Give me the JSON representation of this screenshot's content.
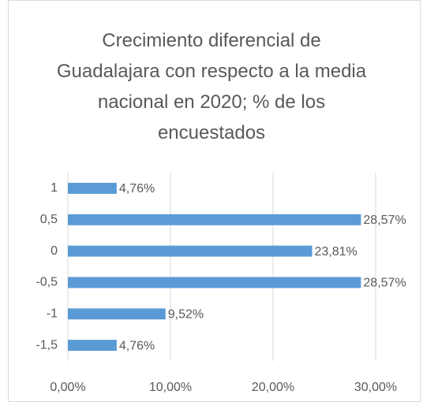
{
  "chart_data": {
    "type": "hbar",
    "title": "Crecimiento diferencial de Guadalajara con respecto a la media nacional en 2020; % de los encuestados",
    "categories": [
      "1",
      "0,5",
      "0",
      "-0,5",
      "-1",
      "-1,5"
    ],
    "values": [
      4.76,
      28.57,
      23.81,
      28.57,
      9.52,
      4.76
    ],
    "value_labels": [
      "4,76%",
      "28,57%",
      "23,81%",
      "28,57%",
      "9,52%",
      "4,76%"
    ],
    "color": "#5b9bd5",
    "xlim": [
      0,
      30
    ],
    "xticks": [
      {
        "value": 0,
        "label": "0,00%"
      },
      {
        "value": 10,
        "label": "10,00%"
      },
      {
        "value": 20,
        "label": "20,00%"
      },
      {
        "value": 30,
        "label": "30,00%"
      }
    ],
    "grid": true
  }
}
